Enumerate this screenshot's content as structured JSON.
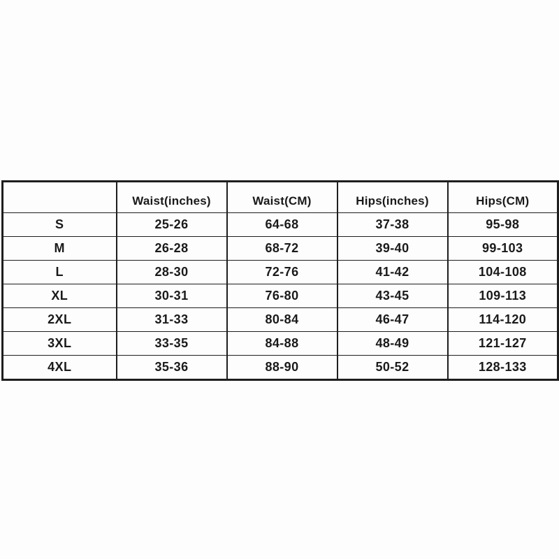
{
  "colors": {
    "background": "#fdfdfd",
    "border": "#1e1e1e",
    "text": "#1a1a1a"
  },
  "chart_data": {
    "type": "table",
    "columns": [
      "",
      "Waist(inches)",
      "Waist(CM)",
      "Hips(inches)",
      "Hips(CM)"
    ],
    "rows": [
      {
        "cells": [
          "S",
          "25-26",
          "64-68",
          "37-38",
          "95-98"
        ]
      },
      {
        "cells": [
          "M",
          "26-28",
          "68-72",
          "39-40",
          "99-103"
        ]
      },
      {
        "cells": [
          "L",
          "28-30",
          "72-76",
          "41-42",
          "104-108"
        ]
      },
      {
        "cells": [
          "XL",
          "30-31",
          "76-80",
          "43-45",
          "109-113"
        ]
      },
      {
        "cells": [
          "2XL",
          "31-33",
          "80-84",
          "46-47",
          "114-120"
        ]
      },
      {
        "cells": [
          "3XL",
          "33-35",
          "84-88",
          "48-49",
          "121-127"
        ]
      },
      {
        "cells": [
          "4XL",
          "35-36",
          "88-90",
          "50-52",
          "128-133"
        ]
      }
    ]
  }
}
